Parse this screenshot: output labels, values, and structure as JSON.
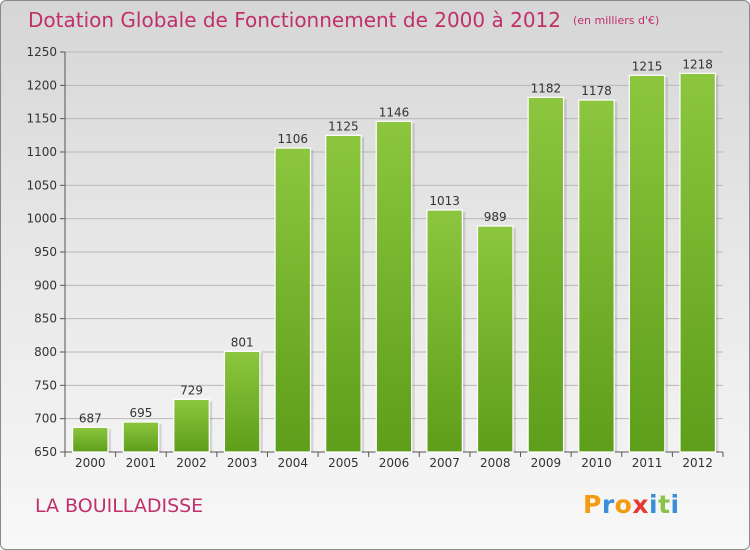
{
  "chart_data": {
    "type": "bar",
    "title": "Dotation Globale de Fonctionnement de 2000 à 2012",
    "unit_note": "(en milliers d'€)",
    "categories": [
      "2000",
      "2001",
      "2002",
      "2003",
      "2004",
      "2005",
      "2006",
      "2007",
      "2008",
      "2009",
      "2010",
      "2011",
      "2012"
    ],
    "values": [
      687,
      695,
      729,
      801,
      1106,
      1125,
      1146,
      1013,
      989,
      1182,
      1178,
      1215,
      1218
    ],
    "value_labels": [
      "687",
      "695",
      "729",
      "801",
      "1106",
      "1125",
      "1146",
      "1013",
      "989",
      "1182",
      "1178",
      "1215",
      "1218"
    ],
    "ylim": [
      650,
      1250
    ],
    "yticks": [
      650,
      700,
      750,
      800,
      850,
      900,
      950,
      1000,
      1050,
      1100,
      1150,
      1200,
      1250
    ],
    "ytick_labels": [
      "650",
      "700",
      "750",
      "800",
      "850",
      "900",
      "950",
      "1000",
      "1050",
      "1100",
      "1150",
      "1200",
      "1250"
    ],
    "grid": true,
    "bar_color": "#8cc63f",
    "bar_color_dark": "#5e9e1a",
    "xlabel": "",
    "ylabel": ""
  },
  "commune_name": "LA BOUILLADISSE",
  "logo": {
    "letters": [
      "P",
      "r",
      "o",
      "x",
      "i",
      "t",
      "i"
    ],
    "colors": [
      "#f39c12",
      "#3b8ed8",
      "#f39c12",
      "#e53935",
      "#3b8ed8",
      "#8bc34a",
      "#3b8ed8"
    ]
  },
  "colors": {
    "accent": "#c0306a",
    "axis": "#555555",
    "grid": "#b8b8b8"
  }
}
